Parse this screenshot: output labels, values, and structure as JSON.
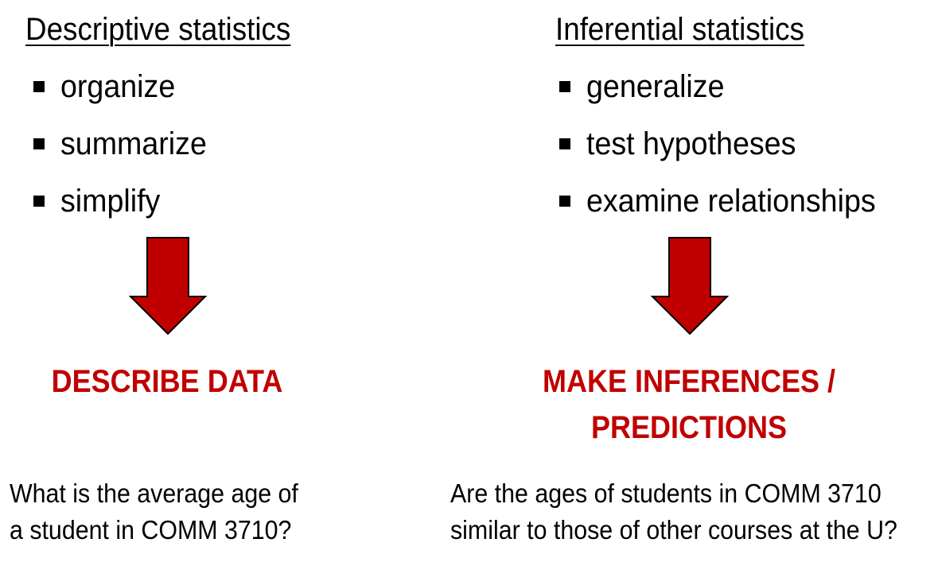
{
  "left": {
    "title": "Descriptive statistics",
    "bullets": [
      "organize",
      "summarize",
      "simplify"
    ],
    "outcome": "DESCRIBE DATA",
    "example": [
      "What is the average age of",
      "a student in COMM 3710?"
    ]
  },
  "right": {
    "title": "Inferential statistics",
    "bullets": [
      "generalize",
      "test hypotheses",
      "examine relationships"
    ],
    "outcome": [
      "MAKE INFERENCES /",
      "PREDICTIONS"
    ],
    "example": [
      "Are the ages of students in COMM 3710",
      "similar to those of other courses at the U?"
    ]
  },
  "colors": {
    "text": "#000000",
    "accent": "#c00000",
    "arrow_fill": "#c00000",
    "arrow_stroke": "#000000"
  },
  "icons": {
    "bullet": "square-bullet-icon",
    "arrow": "down-arrow-icon"
  }
}
